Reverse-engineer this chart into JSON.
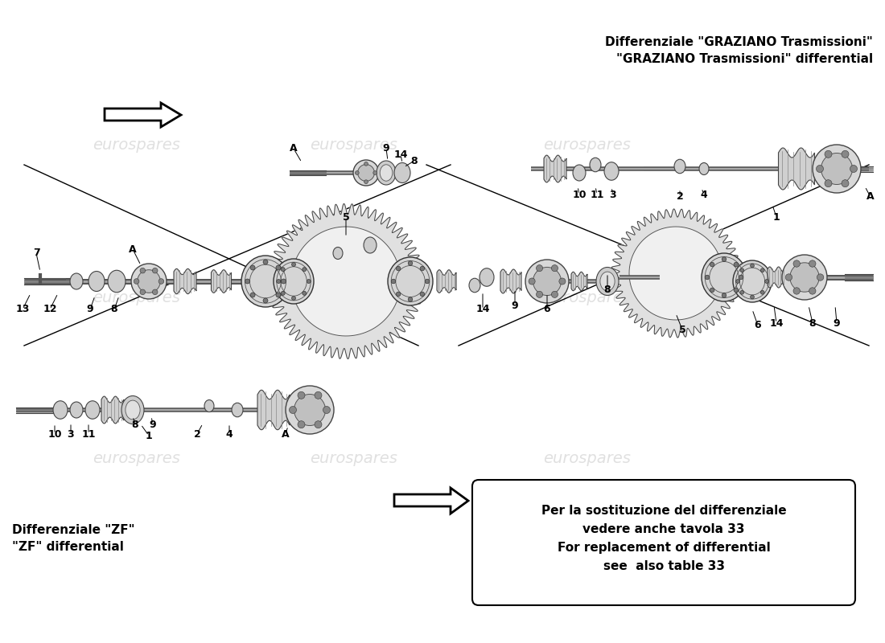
{
  "bg_color": "#ffffff",
  "title_graziano_line1": "Differenziale \"GRAZIANO Trasmissioni\"",
  "title_graziano_line2": "\"GRAZIANO Trasmissioni\" differential",
  "title_zf_line1": "Differenziale \"ZF\"",
  "title_zf_line2": "\"ZF\" differential",
  "note_line1": "Per la sostituzione del differenziale",
  "note_line2": "vedere anche tavola 33",
  "note_line3": "For replacement of differential",
  "note_line4": "see  also table 33",
  "watermark": "eurospares",
  "line_color": "#000000",
  "part_color": "#666666",
  "part_fill": "#e8e8e8",
  "shaft_color": "#888888",
  "watermark_color": "#cccccc"
}
